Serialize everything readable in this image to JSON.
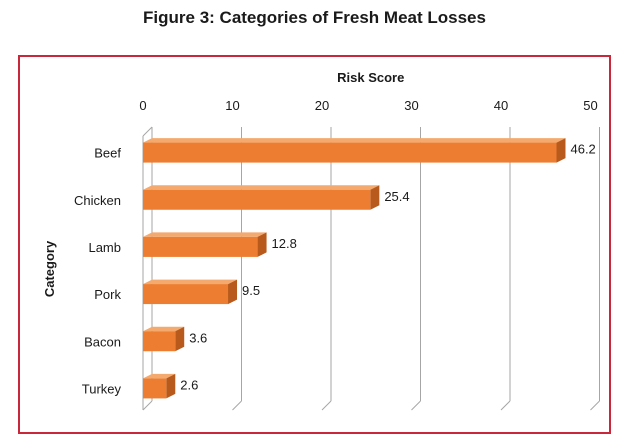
{
  "title": "Figure 3: Categories of Fresh Meat Losses",
  "colors": {
    "frame_border": "#c8283a",
    "bar_front": "#ed7d31",
    "bar_top": "#f4a96e",
    "bar_side": "#b85a1b",
    "gridline": "#a6a6a6"
  },
  "chart_data": {
    "type": "bar",
    "orientation": "horizontal",
    "title": "",
    "xlabel": "Risk Score",
    "ylabel": "Category",
    "x_axis_position": "top",
    "xlim": [
      0,
      50
    ],
    "x_ticks": [
      0,
      10,
      20,
      30,
      40,
      50
    ],
    "grid": true,
    "style": "3d",
    "categories": [
      "Beef",
      "Chicken",
      "Lamb",
      "Pork",
      "Bacon",
      "Turkey"
    ],
    "values": [
      46.2,
      25.4,
      12.8,
      9.5,
      3.6,
      2.6
    ],
    "data_labels": [
      "46.2",
      "25.4",
      "12.8",
      "9.5",
      "3.6",
      "2.6"
    ]
  }
}
